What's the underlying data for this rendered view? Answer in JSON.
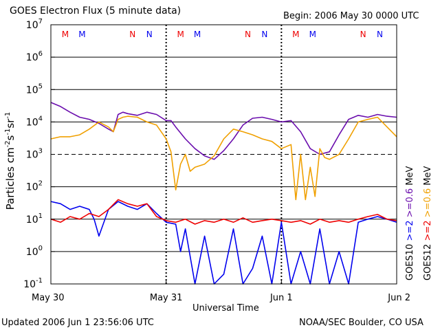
{
  "title": "GOES Electron Flux (5 minute data)",
  "begin_text": "Begin: 2006 May 30 0000 UTC",
  "updated_text": "Updated 2006 Jun  1 23:56:06 UTC",
  "credit_text": "NOAA/SEC Boulder, CO USA",
  "chart_data": {
    "type": "line",
    "title": "GOES Electron Flux (5 minute data)",
    "xlabel": "Universal Time",
    "ylabel": "Particles cm^-2 s^-1 sr^-1",
    "y_scale": "log",
    "ylim": [
      0.1,
      10000000
    ],
    "y_ticks": [
      {
        "base": "10",
        "exp": "-1"
      },
      {
        "base": "10",
        "exp": "0"
      },
      {
        "base": "10",
        "exp": "1"
      },
      {
        "base": "10",
        "exp": "2"
      },
      {
        "base": "10",
        "exp": "3"
      },
      {
        "base": "10",
        "exp": "4"
      },
      {
        "base": "10",
        "exp": "5"
      },
      {
        "base": "10",
        "exp": "6"
      },
      {
        "base": "10",
        "exp": "7"
      }
    ],
    "x_ticks": [
      "May 30",
      "May 31",
      "Jun 1",
      "Jun 2"
    ],
    "xlim_hours": [
      0,
      72
    ],
    "threshold_dashed": 1000,
    "markers": [
      {
        "hour": 3,
        "label": "M",
        "color": "#ee0000"
      },
      {
        "hour": 6.5,
        "label": "M",
        "color": "#0000ee"
      },
      {
        "hour": 17,
        "label": "N",
        "color": "#ee0000"
      },
      {
        "hour": 20.5,
        "label": "N",
        "color": "#0000ee"
      },
      {
        "hour": 27,
        "label": "M",
        "color": "#ee0000"
      },
      {
        "hour": 30.5,
        "label": "M",
        "color": "#0000ee"
      },
      {
        "hour": 41,
        "label": "N",
        "color": "#ee0000"
      },
      {
        "hour": 44.5,
        "label": "N",
        "color": "#0000ee"
      },
      {
        "hour": 51,
        "label": "M",
        "color": "#ee0000"
      },
      {
        "hour": 54.5,
        "label": "M",
        "color": "#0000ee"
      },
      {
        "hour": 65,
        "label": "N",
        "color": "#ee0000"
      },
      {
        "hour": 68.5,
        "label": "N",
        "color": "#0000ee"
      }
    ],
    "right_legend": [
      {
        "text": "GOES10",
        "color": "#000000"
      },
      {
        "text": ">=2",
        "color": "#0000ee"
      },
      {
        "text": ">=0.6",
        "color": "#6a0dad"
      },
      {
        "text": "MeV",
        "color": "#000000"
      },
      {
        "text": "GOES12",
        "color": "#000000"
      },
      {
        "text": ">=2",
        "color": "#ee0000"
      },
      {
        "text": ">=0.6",
        "color": "#f0a000"
      },
      {
        "text": "MeV",
        "color": "#000000"
      }
    ],
    "series": [
      {
        "name": "GOES10 >=0.6 MeV",
        "color": "#6a0dad",
        "x": [
          0,
          2,
          4,
          6,
          8,
          10,
          12,
          13,
          14,
          15,
          16,
          18,
          20,
          22,
          24,
          25,
          26,
          28,
          30,
          32,
          34,
          36,
          38,
          40,
          42,
          44,
          46,
          48,
          50,
          52,
          54,
          56,
          58,
          60,
          62,
          64,
          66,
          68,
          70,
          72
        ],
        "y": [
          40000,
          30000,
          20000,
          14000,
          12000,
          9000,
          6000,
          5000,
          17000,
          20000,
          18000,
          16000,
          20000,
          17000,
          11000,
          11000,
          7000,
          3000,
          1500,
          900,
          700,
          1300,
          3000,
          8000,
          13000,
          14000,
          12000,
          10000,
          11000,
          5000,
          1500,
          1000,
          1200,
          4000,
          12000,
          16000,
          14000,
          17000,
          15000,
          14000
        ]
      },
      {
        "name": "GOES12 >=0.6 MeV",
        "color": "#f0a000",
        "x": [
          0,
          2,
          4,
          6,
          8,
          10,
          12,
          13,
          14,
          15,
          16,
          18,
          20,
          22,
          24,
          25,
          26,
          27,
          28,
          29,
          30,
          32,
          34,
          36,
          38,
          40,
          42,
          44,
          46,
          48,
          50,
          51,
          52,
          53,
          54,
          55,
          56,
          57,
          58,
          60,
          62,
          64,
          66,
          68,
          70,
          72
        ],
        "y": [
          3000,
          3500,
          3500,
          4000,
          6000,
          10000,
          7000,
          5000,
          12000,
          14000,
          15000,
          14000,
          10000,
          8000,
          3000,
          1200,
          80,
          500,
          1000,
          300,
          400,
          500,
          900,
          3000,
          6000,
          5000,
          4000,
          3000,
          2500,
          1500,
          2000,
          40,
          1000,
          40,
          400,
          50,
          1500,
          800,
          700,
          1000,
          3000,
          10000,
          12000,
          14000,
          7000,
          3500
        ]
      },
      {
        "name": "GOES10 >=2 MeV",
        "color": "#0000ee",
        "x": [
          0,
          2,
          4,
          6,
          8,
          9,
          10,
          12,
          14,
          16,
          18,
          20,
          22,
          24,
          26,
          27,
          28,
          30,
          32,
          34,
          36,
          38,
          40,
          42,
          44,
          46,
          48,
          50,
          52,
          54,
          56,
          58,
          60,
          62,
          64,
          66,
          68,
          70,
          72
        ],
        "y": [
          35,
          30,
          20,
          25,
          20,
          10,
          3,
          20,
          35,
          25,
          20,
          30,
          15,
          8,
          7,
          1,
          5,
          0.1,
          3,
          0.1,
          0.2,
          5,
          0.1,
          0.3,
          3,
          0.1,
          8,
          0.1,
          1,
          0.1,
          5,
          0.1,
          1,
          0.1,
          8,
          10,
          12,
          10,
          8
        ]
      },
      {
        "name": "GOES12 >=2 MeV",
        "color": "#ee0000",
        "x": [
          0,
          2,
          4,
          6,
          8,
          10,
          12,
          14,
          16,
          18,
          20,
          22,
          24,
          26,
          28,
          30,
          32,
          34,
          36,
          38,
          40,
          42,
          44,
          46,
          48,
          50,
          52,
          54,
          56,
          58,
          60,
          62,
          64,
          66,
          68,
          70,
          72
        ],
        "y": [
          10,
          8,
          12,
          10,
          15,
          12,
          20,
          40,
          30,
          25,
          30,
          12,
          9,
          8,
          10,
          7,
          9,
          8,
          10,
          8,
          11,
          8,
          9,
          10,
          9,
          8,
          9,
          7,
          10,
          8,
          9,
          8,
          10,
          12,
          14,
          10,
          9
        ]
      }
    ]
  }
}
